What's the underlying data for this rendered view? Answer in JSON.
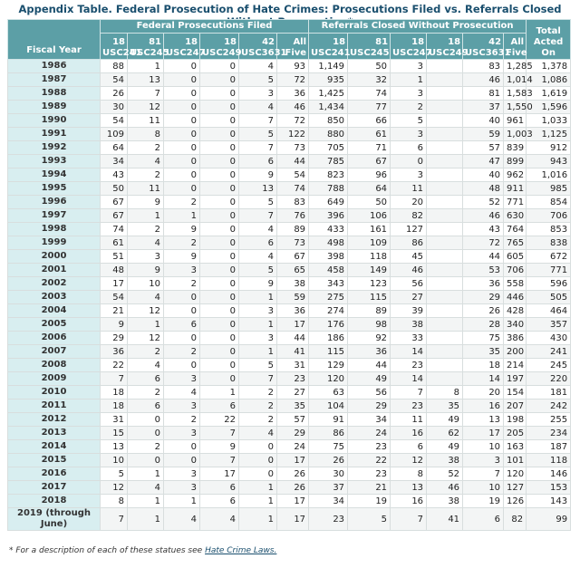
{
  "title": "Appendix Table. Federal Prosecution of Hate Crimes: Prosecutions Filed vs. Referrals Closed Without Prosecution*",
  "table": {
    "fiscal_year_header": "Fiscal Year",
    "group_headers": [
      "Federal Prosecutions Filed",
      "Referrals Closed Without Prosecution"
    ],
    "total_header": "Total Acted On",
    "column_headers": [
      "18 USC241",
      "81 USC245",
      "18 USC247",
      "18 USC249",
      "42 USC3631",
      "All Five",
      "18 USC241",
      "81 USC245",
      "18 USC247",
      "18 USC249",
      "42 USC3631",
      "All Five"
    ],
    "rows": [
      [
        "1986",
        "88",
        "1",
        "0",
        "0",
        "4",
        "93",
        "1,149",
        "50",
        "3",
        null,
        "83",
        "1,285",
        "1,378"
      ],
      [
        "1987",
        "54",
        "13",
        "0",
        "0",
        "5",
        "72",
        "935",
        "32",
        "1",
        null,
        "46",
        "1,014",
        "1,086"
      ],
      [
        "1988",
        "26",
        "7",
        "0",
        "0",
        "3",
        "36",
        "1,425",
        "74",
        "3",
        null,
        "81",
        "1,583",
        "1,619"
      ],
      [
        "1989",
        "30",
        "12",
        "0",
        "0",
        "4",
        "46",
        "1,434",
        "77",
        "2",
        null,
        "37",
        "1,550",
        "1,596"
      ],
      [
        "1990",
        "54",
        "11",
        "0",
        "0",
        "7",
        "72",
        "850",
        "66",
        "5",
        null,
        "40",
        "961",
        "1,033"
      ],
      [
        "1991",
        "109",
        "8",
        "0",
        "0",
        "5",
        "122",
        "880",
        "61",
        "3",
        null,
        "59",
        "1,003",
        "1,125"
      ],
      [
        "1992",
        "64",
        "2",
        "0",
        "0",
        "7",
        "73",
        "705",
        "71",
        "6",
        null,
        "57",
        "839",
        "912"
      ],
      [
        "1993",
        "34",
        "4",
        "0",
        "0",
        "6",
        "44",
        "785",
        "67",
        "0",
        null,
        "47",
        "899",
        "943"
      ],
      [
        "1994",
        "43",
        "2",
        "0",
        "0",
        "9",
        "54",
        "823",
        "96",
        "3",
        null,
        "40",
        "962",
        "1,016"
      ],
      [
        "1995",
        "50",
        "11",
        "0",
        "0",
        "13",
        "74",
        "788",
        "64",
        "11",
        null,
        "48",
        "911",
        "985"
      ],
      [
        "1996",
        "67",
        "9",
        "2",
        "0",
        "5",
        "83",
        "649",
        "50",
        "20",
        null,
        "52",
        "771",
        "854"
      ],
      [
        "1997",
        "67",
        "1",
        "1",
        "0",
        "7",
        "76",
        "396",
        "106",
        "82",
        null,
        "46",
        "630",
        "706"
      ],
      [
        "1998",
        "74",
        "2",
        "9",
        "0",
        "4",
        "89",
        "433",
        "161",
        "127",
        null,
        "43",
        "764",
        "853"
      ],
      [
        "1999",
        "61",
        "4",
        "2",
        "0",
        "6",
        "73",
        "498",
        "109",
        "86",
        null,
        "72",
        "765",
        "838"
      ],
      [
        "2000",
        "51",
        "3",
        "9",
        "0",
        "4",
        "67",
        "398",
        "118",
        "45",
        null,
        "44",
        "605",
        "672"
      ],
      [
        "2001",
        "48",
        "9",
        "3",
        "0",
        "5",
        "65",
        "458",
        "149",
        "46",
        null,
        "53",
        "706",
        "771"
      ],
      [
        "2002",
        "17",
        "10",
        "2",
        "0",
        "9",
        "38",
        "343",
        "123",
        "56",
        null,
        "36",
        "558",
        "596"
      ],
      [
        "2003",
        "54",
        "4",
        "0",
        "0",
        "1",
        "59",
        "275",
        "115",
        "27",
        null,
        "29",
        "446",
        "505"
      ],
      [
        "2004",
        "21",
        "12",
        "0",
        "0",
        "3",
        "36",
        "274",
        "89",
        "39",
        null,
        "26",
        "428",
        "464"
      ],
      [
        "2005",
        "9",
        "1",
        "6",
        "0",
        "1",
        "17",
        "176",
        "98",
        "38",
        null,
        "28",
        "340",
        "357"
      ],
      [
        "2006",
        "29",
        "12",
        "0",
        "0",
        "3",
        "44",
        "186",
        "92",
        "33",
        null,
        "75",
        "386",
        "430"
      ],
      [
        "2007",
        "36",
        "2",
        "2",
        "0",
        "1",
        "41",
        "115",
        "36",
        "14",
        null,
        "35",
        "200",
        "241"
      ],
      [
        "2008",
        "22",
        "4",
        "0",
        "0",
        "5",
        "31",
        "129",
        "44",
        "23",
        null,
        "18",
        "214",
        "245"
      ],
      [
        "2009",
        "7",
        "6",
        "3",
        "0",
        "7",
        "23",
        "120",
        "49",
        "14",
        null,
        "14",
        "197",
        "220"
      ],
      [
        "2010",
        "18",
        "2",
        "4",
        "1",
        "2",
        "27",
        "63",
        "56",
        "7",
        "8",
        "20",
        "154",
        "181"
      ],
      [
        "2011",
        "18",
        "6",
        "3",
        "6",
        "2",
        "35",
        "104",
        "29",
        "23",
        "35",
        "16",
        "207",
        "242"
      ],
      [
        "2012",
        "31",
        "0",
        "2",
        "22",
        "2",
        "57",
        "91",
        "34",
        "11",
        "49",
        "13",
        "198",
        "255"
      ],
      [
        "2013",
        "15",
        "0",
        "3",
        "7",
        "4",
        "29",
        "86",
        "24",
        "16",
        "62",
        "17",
        "205",
        "234"
      ],
      [
        "2014",
        "13",
        "2",
        "0",
        "9",
        "0",
        "24",
        "75",
        "23",
        "6",
        "49",
        "10",
        "163",
        "187"
      ],
      [
        "2015",
        "10",
        "0",
        "0",
        "7",
        "0",
        "17",
        "26",
        "22",
        "12",
        "38",
        "3",
        "101",
        "118"
      ],
      [
        "2016",
        "5",
        "1",
        "3",
        "17",
        "0",
        "26",
        "30",
        "23",
        "8",
        "52",
        "7",
        "120",
        "146"
      ],
      [
        "2017",
        "12",
        "4",
        "3",
        "6",
        "1",
        "26",
        "37",
        "21",
        "13",
        "46",
        "10",
        "127",
        "153"
      ],
      [
        "2018",
        "8",
        "1",
        "1",
        "6",
        "1",
        "17",
        "34",
        "19",
        "16",
        "38",
        "19",
        "126",
        "143"
      ],
      [
        "2019 (through June)",
        "7",
        "1",
        "4",
        "4",
        "1",
        "17",
        "23",
        "5",
        "7",
        "41",
        "6",
        "82",
        "99"
      ]
    ]
  },
  "footnote": {
    "text": "* For a description of each of these statues see ",
    "link": "Hate Crime Laws."
  }
}
